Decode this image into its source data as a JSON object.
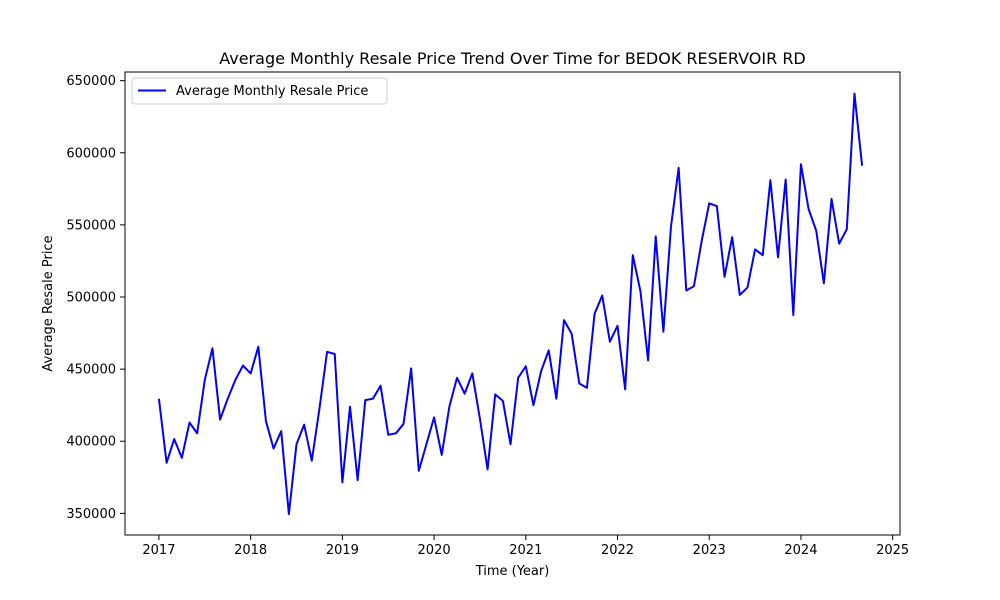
{
  "chart_data": {
    "type": "line",
    "title": "Average Monthly Resale Price Trend Over Time for BEDOK RESERVOIR RD",
    "xlabel": "Time (Year)",
    "ylabel": "Average Resale Price",
    "xlim": [
      2016.63,
      2025.08
    ],
    "ylim": [
      335000,
      656000
    ],
    "x_ticks": [
      "2017",
      "2018",
      "2019",
      "2020",
      "2021",
      "2022",
      "2023",
      "2024",
      "2025"
    ],
    "y_ticks": [
      "350000",
      "400000",
      "450000",
      "500000",
      "550000",
      "600000",
      "650000"
    ],
    "x_tick_values": [
      2017,
      2018,
      2019,
      2020,
      2021,
      2022,
      2023,
      2024,
      2025
    ],
    "y_tick_values": [
      350000,
      400000,
      450000,
      500000,
      550000,
      600000,
      650000
    ],
    "grid": false,
    "legend_position": "upper-left",
    "color": "#0000ff",
    "series": [
      {
        "name": "Average Monthly Resale Price",
        "color": "#0000ff",
        "points": [
          [
            "2017-01",
            429500
          ],
          [
            "2017-02",
            385000
          ],
          [
            "2017-03",
            401500
          ],
          [
            "2017-04",
            388500
          ],
          [
            "2017-05",
            413000
          ],
          [
            "2017-06",
            405500
          ],
          [
            "2017-07",
            442500
          ],
          [
            "2017-08",
            464500
          ],
          [
            "2017-09",
            415000
          ],
          [
            "2017-10",
            429500
          ],
          [
            "2017-11",
            442500
          ],
          [
            "2017-12",
            452500
          ],
          [
            "2018-01",
            447000
          ],
          [
            "2018-02",
            465500
          ],
          [
            "2018-03",
            414000
          ],
          [
            "2018-04",
            395000
          ],
          [
            "2018-05",
            407000
          ],
          [
            "2018-06",
            349500
          ],
          [
            "2018-07",
            398000
          ],
          [
            "2018-08",
            411500
          ],
          [
            "2018-09",
            386500
          ],
          [
            "2018-10",
            422500
          ],
          [
            "2018-11",
            462000
          ],
          [
            "2018-12",
            460500
          ],
          [
            "2019-01",
            371500
          ],
          [
            "2019-02",
            424000
          ],
          [
            "2019-03",
            373000
          ],
          [
            "2019-04",
            428500
          ],
          [
            "2019-05",
            429500
          ],
          [
            "2019-06",
            438500
          ],
          [
            "2019-07",
            404500
          ],
          [
            "2019-08",
            405500
          ],
          [
            "2019-09",
            412000
          ],
          [
            "2019-10",
            450500
          ],
          [
            "2019-11",
            379500
          ],
          [
            "2019-12",
            398000
          ],
          [
            "2020-01",
            416500
          ],
          [
            "2020-02",
            390500
          ],
          [
            "2020-03",
            424000
          ],
          [
            "2020-04",
            444000
          ],
          [
            "2020-05",
            433000
          ],
          [
            "2020-06",
            447000
          ],
          [
            "2020-07",
            415500
          ],
          [
            "2020-08",
            380500
          ],
          [
            "2020-09",
            432500
          ],
          [
            "2020-10",
            428000
          ],
          [
            "2020-11",
            398000
          ],
          [
            "2020-12",
            444000
          ],
          [
            "2021-01",
            452000
          ],
          [
            "2021-02",
            425000
          ],
          [
            "2021-03",
            448500
          ],
          [
            "2021-04",
            463000
          ],
          [
            "2021-05",
            429500
          ],
          [
            "2021-06",
            484000
          ],
          [
            "2021-07",
            474500
          ],
          [
            "2021-08",
            440000
          ],
          [
            "2021-09",
            437000
          ],
          [
            "2021-10",
            488500
          ],
          [
            "2021-11",
            501000
          ],
          [
            "2021-12",
            469000
          ],
          [
            "2022-01",
            480000
          ],
          [
            "2022-02",
            436000
          ],
          [
            "2022-03",
            529000
          ],
          [
            "2022-04",
            504000
          ],
          [
            "2022-05",
            456000
          ],
          [
            "2022-06",
            542000
          ],
          [
            "2022-07",
            476000
          ],
          [
            "2022-08",
            549000
          ],
          [
            "2022-09",
            589500
          ],
          [
            "2022-10",
            504500
          ],
          [
            "2022-11",
            507500
          ],
          [
            "2022-12",
            538500
          ],
          [
            "2023-01",
            565000
          ],
          [
            "2023-02",
            563000
          ],
          [
            "2023-03",
            514000
          ],
          [
            "2023-04",
            541500
          ],
          [
            "2023-05",
            501500
          ],
          [
            "2023-06",
            506500
          ],
          [
            "2023-07",
            533000
          ],
          [
            "2023-08",
            529000
          ],
          [
            "2023-09",
            581000
          ],
          [
            "2023-10",
            527500
          ],
          [
            "2023-11",
            581500
          ],
          [
            "2023-12",
            487500
          ],
          [
            "2024-01",
            592000
          ],
          [
            "2024-02",
            561000
          ],
          [
            "2024-03",
            546000
          ],
          [
            "2024-04",
            509500
          ],
          [
            "2024-05",
            568000
          ],
          [
            "2024-06",
            537000
          ],
          [
            "2024-07",
            547000
          ],
          [
            "2024-08",
            641000
          ],
          [
            "2024-09",
            591000
          ]
        ]
      }
    ]
  }
}
